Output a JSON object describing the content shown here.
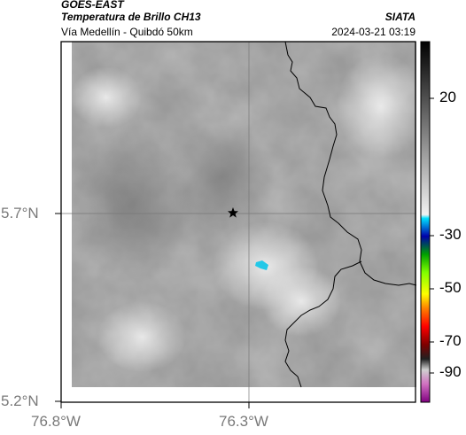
{
  "header": {
    "satellite": "GOES-EAST",
    "product": "Temperatura de Brillo CH13",
    "region": "Vía Medellín - Quibdó 50km",
    "source": "SIATA",
    "timestamp": "2024-03-21 03:19"
  },
  "axes": {
    "lat_labels": [
      "5.7°N",
      "5.2°N"
    ],
    "lon_labels": [
      "76.8°W",
      "76.3°W"
    ]
  },
  "colorbar": {
    "tick_labels": [
      "20",
      "-30",
      "-50",
      "-70",
      "-90"
    ]
  },
  "colors": {
    "cold_cloud_cyan": "#22c8e8",
    "coastline": "#000000",
    "frame": "#000000"
  }
}
